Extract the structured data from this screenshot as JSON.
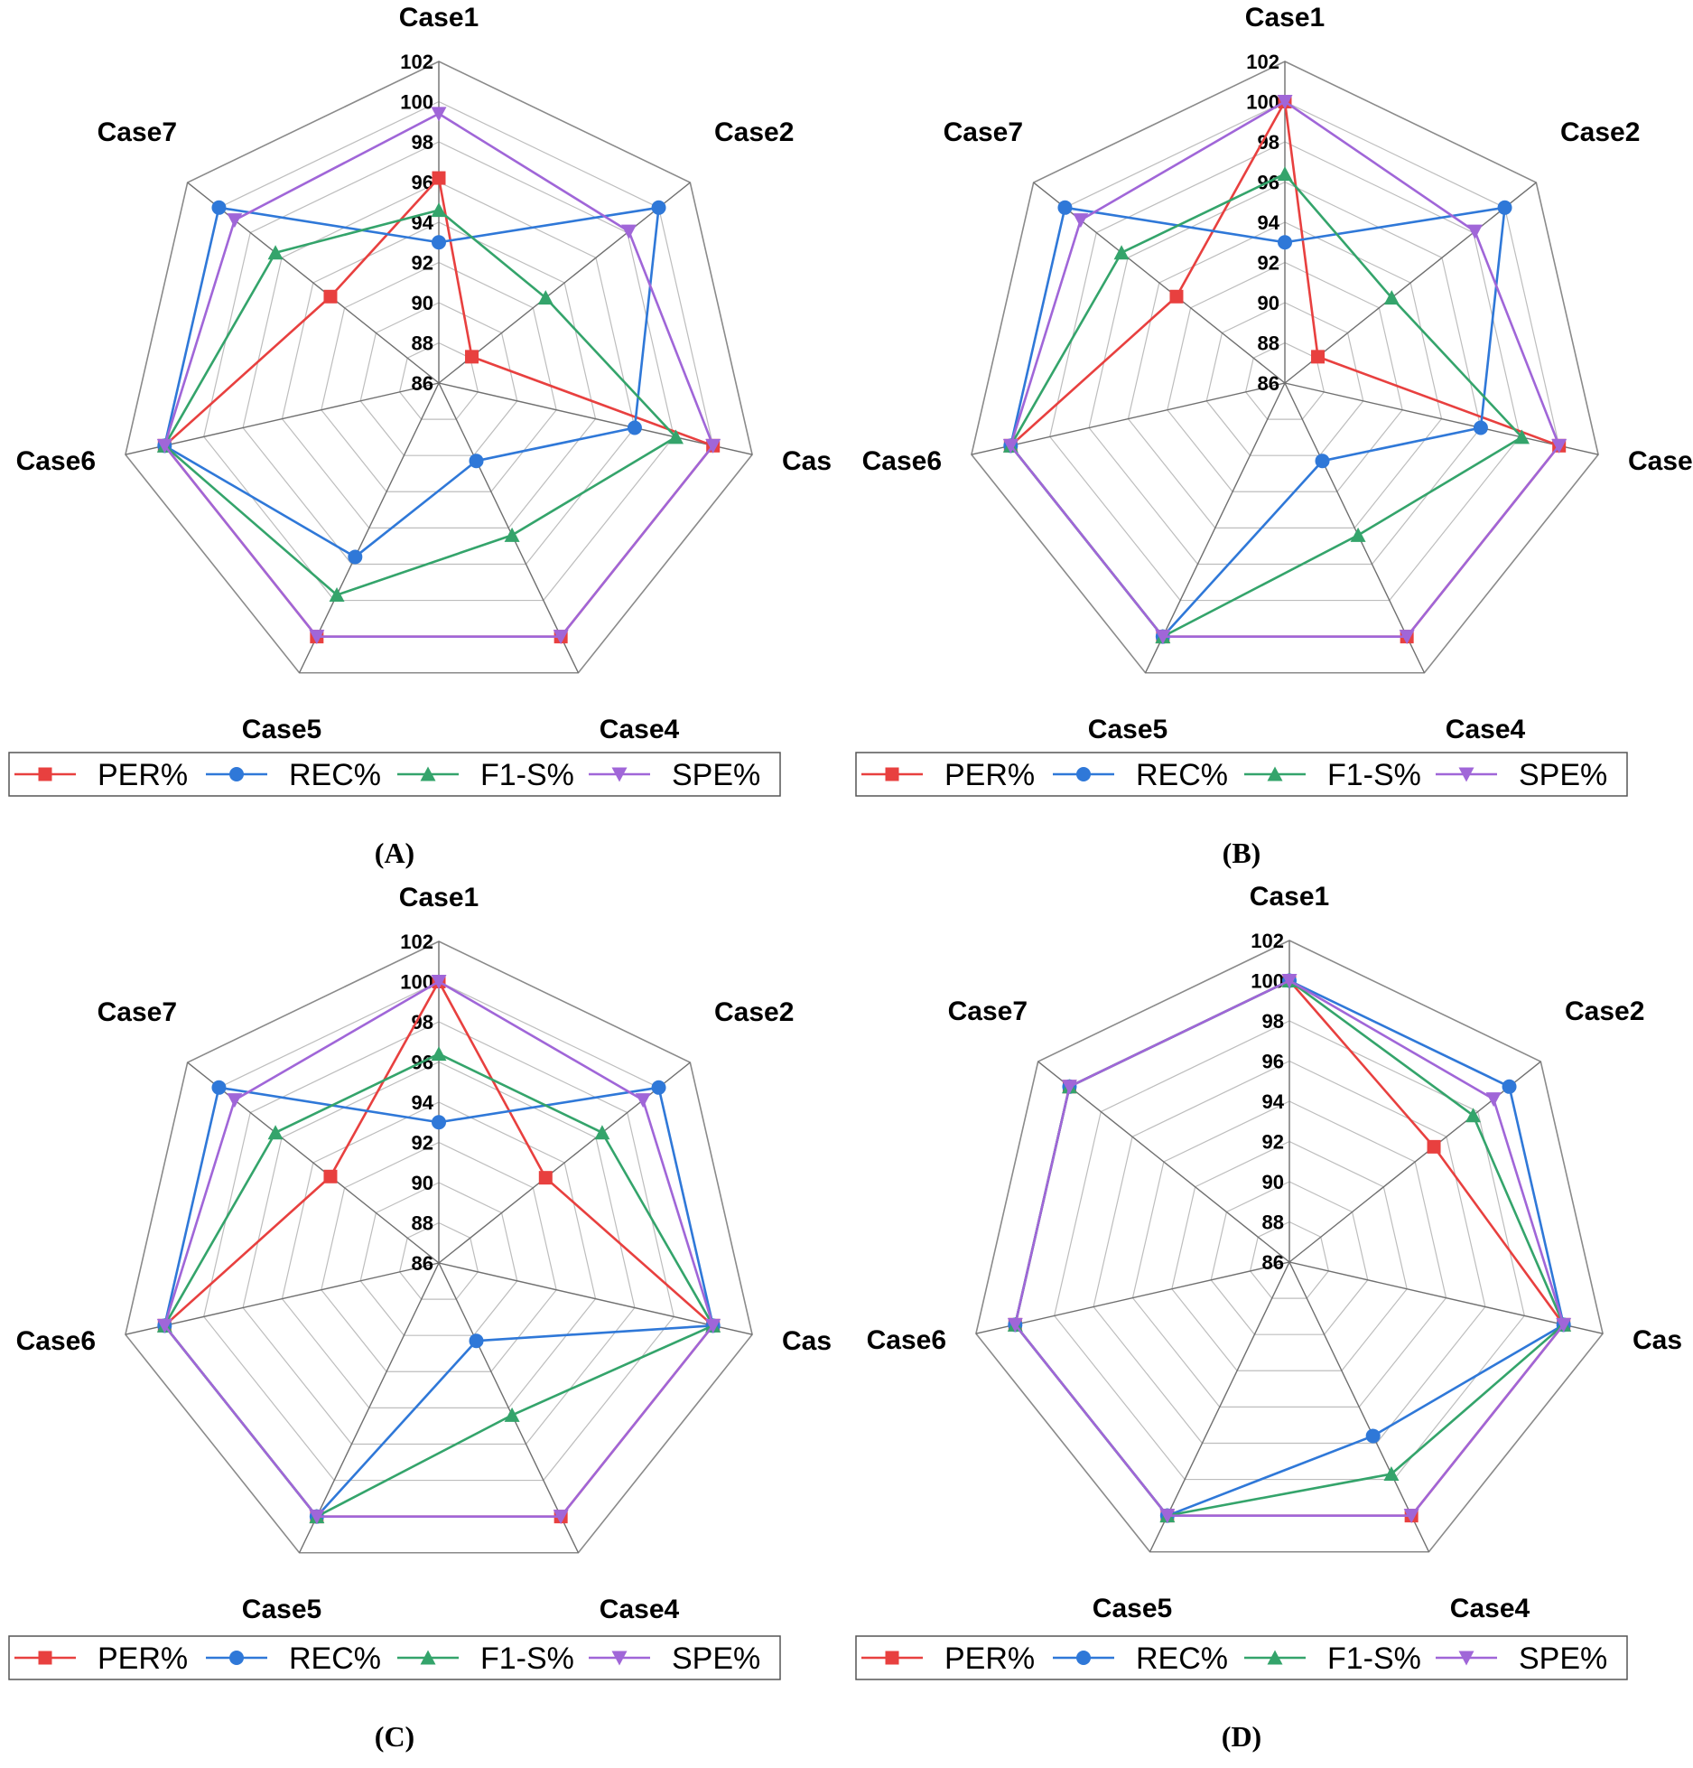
{
  "figure": {
    "legend_entries": [
      {
        "label": "PER%",
        "color": "#e8403f",
        "marker": "square"
      },
      {
        "label": "REC%",
        "color": "#2f78d8",
        "marker": "circle"
      },
      {
        "label": "F1-S%",
        "color": "#34a46b",
        "marker": "triangle-up"
      },
      {
        "label": "SPE%",
        "color": "#a066d8",
        "marker": "triangle-down"
      }
    ]
  },
  "chart_data": [
    {
      "type": "radar",
      "caption": "(A)",
      "axes": [
        "Case1",
        "Case2",
        "Cas",
        "Case4",
        "Case5",
        "Case6",
        "Case7"
      ],
      "rlim": [
        86,
        102
      ],
      "ticks": [
        "86",
        "88",
        "90",
        "92",
        "94",
        "96",
        "98",
        "100",
        "102"
      ],
      "grid": true,
      "legend": "bottom",
      "series": [
        {
          "name": "PER%",
          "values": [
            96.2,
            88.1,
            100,
            100,
            100,
            100,
            92.9
          ]
        },
        {
          "name": "REC%",
          "values": [
            93,
            100,
            96,
            90.3,
            95.6,
            100,
            100
          ]
        },
        {
          "name": "F1-S%",
          "values": [
            94.6,
            92.8,
            98.1,
            94.4,
            97.7,
            100,
            96.4
          ]
        },
        {
          "name": "SPE%",
          "values": [
            99.4,
            98.1,
            100,
            100,
            100,
            100,
            99
          ]
        }
      ]
    },
    {
      "type": "radar",
      "caption": "(B)",
      "axes": [
        "Case1",
        "Case2",
        "Case",
        "Case4",
        "Case5",
        "Case6",
        "Case7"
      ],
      "rlim": [
        86,
        102
      ],
      "ticks": [
        "86",
        "88",
        "90",
        "92",
        "94",
        "96",
        "98",
        "100",
        "102"
      ],
      "grid": true,
      "legend": "bottom",
      "series": [
        {
          "name": "PER%",
          "values": [
            100,
            88.1,
            100,
            100,
            100,
            100,
            92.9
          ]
        },
        {
          "name": "REC%",
          "values": [
            93,
            100,
            96,
            90.3,
            100,
            100,
            100
          ]
        },
        {
          "name": "F1-S%",
          "values": [
            96.4,
            92.8,
            98.1,
            94.4,
            100,
            100,
            96.4
          ]
        },
        {
          "name": "SPE%",
          "values": [
            100,
            98.1,
            100,
            100,
            100,
            100,
            99
          ]
        }
      ]
    },
    {
      "type": "radar",
      "caption": "(C)",
      "axes": [
        "Case1",
        "Case2",
        "Cas",
        "Case4",
        "Case5",
        "Case6",
        "Case7"
      ],
      "rlim": [
        86,
        102
      ],
      "ticks": [
        "86",
        "88",
        "90",
        "92",
        "94",
        "96",
        "98",
        "100",
        "102"
      ],
      "grid": true,
      "legend": "bottom",
      "series": [
        {
          "name": "PER%",
          "values": [
            100,
            92.8,
            100,
            100,
            100,
            100,
            92.9
          ]
        },
        {
          "name": "REC%",
          "values": [
            93,
            100,
            100,
            90.3,
            100,
            100,
            100
          ]
        },
        {
          "name": "F1-S%",
          "values": [
            96.4,
            96.4,
            100,
            94.4,
            100,
            100,
            96.4
          ]
        },
        {
          "name": "SPE%",
          "values": [
            100,
            99,
            100,
            100,
            100,
            100,
            99
          ]
        }
      ]
    },
    {
      "type": "radar",
      "caption": "(D)",
      "axes": [
        "Case1",
        "Case2",
        "Cas",
        "Case4",
        "Case5",
        "Case6",
        "Case7"
      ],
      "rlim": [
        86,
        102
      ],
      "ticks": [
        "86",
        "88",
        "90",
        "92",
        "94",
        "96",
        "98",
        "100",
        "102"
      ],
      "grid": true,
      "legend": "bottom",
      "series": [
        {
          "name": "PER%",
          "values": [
            100,
            95.2,
            100,
            100,
            100,
            100,
            100
          ]
        },
        {
          "name": "REC%",
          "values": [
            100,
            100,
            100,
            95.6,
            100,
            100,
            100
          ]
        },
        {
          "name": "F1-S%",
          "values": [
            100,
            97.7,
            100,
            97.7,
            100,
            100,
            100
          ]
        },
        {
          "name": "SPE%",
          "values": [
            100,
            99,
            100,
            100,
            100,
            100,
            100
          ]
        }
      ]
    }
  ]
}
